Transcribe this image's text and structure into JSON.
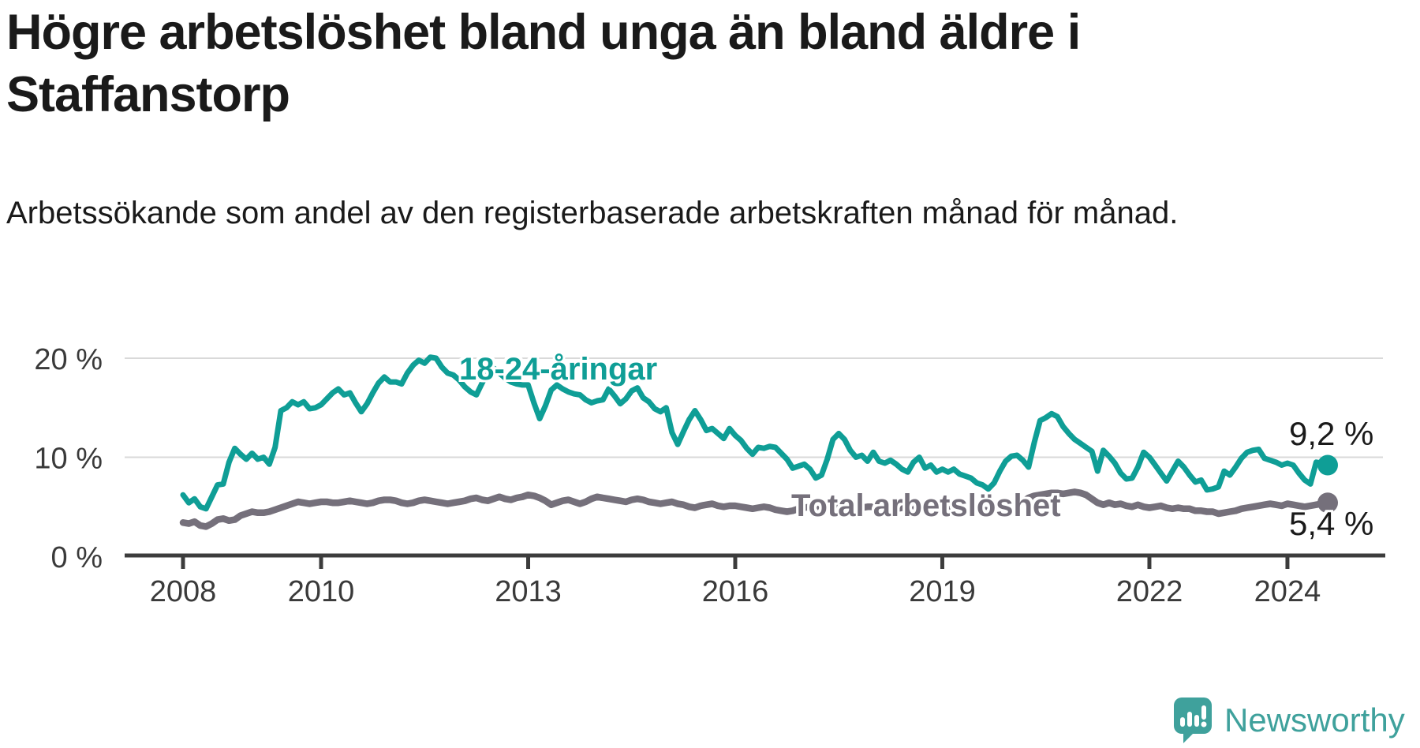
{
  "header": {
    "title": "Högre arbetslöshet bland unga än bland äldre i Staffanstorp",
    "subtitle": "Arbetssökande som andel av den registerbaserade arbetskraften månad för månad."
  },
  "colors": {
    "accent_teal": "#0f9e96",
    "line_gray": "#75707b",
    "text_dark": "#1a1a1a",
    "tick_text": "#3a3a3a",
    "gridline": "#d9d9d9",
    "axis": "#3c3c3c",
    "brand_teal": "#3fa19c"
  },
  "footer": {
    "brand": "Newsworthy"
  },
  "chart_data": {
    "type": "line",
    "title": "Högre arbetslöshet bland unga än bland äldre i Staffanstorp",
    "subtitle": "Arbetssökande som andel av den registerbaserade arbetskraften månad för månad.",
    "unit": "%",
    "x_interval": "monthly",
    "x_start": "2008-01",
    "x_end": "2024-08",
    "ylim": [
      0,
      21.5
    ],
    "grid": "horizontal",
    "legend_position": "inline-labels",
    "y_ticks": [
      {
        "value": 0,
        "label": "0 %"
      },
      {
        "value": 10,
        "label": "10 %"
      },
      {
        "value": 20,
        "label": "20 %"
      }
    ],
    "x_ticks": [
      {
        "year": 2008,
        "label": "2008"
      },
      {
        "year": 2010,
        "label": "2010"
      },
      {
        "year": 2013,
        "label": "2013"
      },
      {
        "year": 2016,
        "label": "2016"
      },
      {
        "year": 2019,
        "label": "2019"
      },
      {
        "year": 2022,
        "label": "2022"
      },
      {
        "year": 2024,
        "label": "2024"
      }
    ],
    "series": [
      {
        "name": "18-24-åringar",
        "color": "#0f9e96",
        "end_label": "9,2 %",
        "end_value": 9.2,
        "values": [
          6.2,
          5.4,
          5.8,
          5.0,
          4.8,
          6.0,
          7.2,
          7.3,
          9.5,
          10.9,
          10.3,
          9.8,
          10.4,
          9.8,
          10.0,
          9.3,
          11.0,
          14.7,
          15.0,
          15.6,
          15.3,
          15.6,
          14.9,
          15.0,
          15.3,
          15.9,
          16.5,
          16.9,
          16.3,
          16.5,
          15.5,
          14.6,
          15.4,
          16.5,
          17.5,
          18.1,
          17.6,
          17.6,
          17.4,
          18.5,
          19.3,
          19.8,
          19.5,
          20.1,
          20.0,
          19.1,
          18.5,
          18.3,
          17.8,
          17.1,
          16.6,
          16.3,
          17.5,
          18.6,
          19.0,
          18.5,
          18.0,
          17.6,
          17.4,
          17.3,
          17.3,
          15.5,
          13.9,
          15.2,
          16.8,
          17.3,
          16.9,
          16.6,
          16.4,
          16.3,
          15.8,
          15.5,
          15.7,
          15.8,
          16.9,
          16.2,
          15.4,
          15.9,
          16.7,
          17.0,
          16.0,
          15.6,
          14.9,
          14.6,
          15.0,
          12.5,
          11.3,
          12.6,
          13.8,
          14.7,
          13.8,
          12.7,
          12.9,
          12.4,
          11.9,
          12.9,
          12.2,
          11.7,
          10.9,
          10.3,
          11.0,
          10.9,
          11.1,
          11.0,
          10.4,
          9.8,
          8.9,
          9.1,
          9.3,
          8.8,
          7.9,
          8.2,
          9.8,
          11.8,
          12.4,
          11.8,
          10.7,
          10.0,
          10.2,
          9.6,
          10.5,
          9.6,
          9.4,
          9.7,
          9.3,
          8.8,
          8.5,
          9.5,
          10.0,
          8.9,
          9.2,
          8.5,
          8.8,
          8.5,
          8.8,
          8.3,
          8.1,
          7.9,
          7.4,
          7.2,
          6.8,
          7.4,
          8.6,
          9.6,
          10.1,
          10.2,
          9.7,
          9.0,
          11.5,
          13.7,
          14.0,
          14.4,
          14.1,
          13.1,
          12.4,
          11.8,
          11.4,
          11.0,
          10.6,
          8.6,
          10.7,
          10.1,
          9.4,
          8.4,
          7.8,
          7.9,
          9.0,
          10.5,
          10.0,
          9.2,
          8.4,
          7.6,
          8.6,
          9.6,
          9.0,
          8.2,
          7.5,
          7.7,
          6.7,
          6.8,
          7.0,
          8.6,
          8.2,
          9.0,
          9.9,
          10.5,
          10.7,
          10.8,
          9.9,
          9.7,
          9.5,
          9.2,
          9.4,
          9.2,
          8.4,
          7.7,
          7.3,
          9.5,
          9.4,
          9.2
        ]
      },
      {
        "name": "Total arbetslöshet",
        "color": "#75707b",
        "end_label": "5,4 %",
        "end_value": 5.4,
        "values": [
          3.4,
          3.3,
          3.5,
          3.1,
          3.0,
          3.3,
          3.7,
          3.8,
          3.6,
          3.7,
          4.1,
          4.3,
          4.5,
          4.4,
          4.4,
          4.5,
          4.7,
          4.9,
          5.1,
          5.3,
          5.5,
          5.4,
          5.3,
          5.4,
          5.5,
          5.5,
          5.4,
          5.4,
          5.5,
          5.6,
          5.5,
          5.4,
          5.3,
          5.4,
          5.6,
          5.7,
          5.7,
          5.6,
          5.4,
          5.3,
          5.4,
          5.6,
          5.7,
          5.6,
          5.5,
          5.4,
          5.3,
          5.4,
          5.5,
          5.6,
          5.8,
          5.9,
          5.7,
          5.6,
          5.8,
          6.0,
          5.8,
          5.7,
          5.9,
          6.0,
          6.2,
          6.1,
          5.9,
          5.6,
          5.2,
          5.4,
          5.6,
          5.7,
          5.5,
          5.3,
          5.5,
          5.8,
          6.0,
          5.9,
          5.8,
          5.7,
          5.6,
          5.5,
          5.7,
          5.8,
          5.7,
          5.5,
          5.4,
          5.3,
          5.4,
          5.5,
          5.3,
          5.2,
          5.0,
          4.9,
          5.1,
          5.2,
          5.3,
          5.1,
          5.0,
          5.1,
          5.1,
          5.0,
          4.9,
          4.8,
          4.9,
          5.0,
          4.9,
          4.7,
          4.6,
          4.5,
          4.6,
          4.8,
          4.9,
          5.0,
          4.8,
          4.7,
          4.8,
          5.0,
          5.1,
          5.0,
          4.9,
          4.8,
          4.9,
          5.0,
          5.0,
          4.9,
          4.8,
          4.7,
          4.8,
          4.9,
          5.0,
          4.9,
          4.8,
          4.7,
          4.8,
          4.9,
          4.8,
          4.7,
          4.8,
          4.7,
          4.6,
          4.7,
          4.8,
          4.7,
          4.6,
          4.7,
          4.9,
          5.0,
          5.1,
          5.2,
          5.5,
          5.9,
          6.1,
          6.2,
          6.3,
          6.4,
          6.4,
          6.3,
          6.4,
          6.5,
          6.4,
          6.2,
          5.8,
          5.4,
          5.2,
          5.4,
          5.2,
          5.3,
          5.1,
          5.0,
          5.2,
          5.0,
          4.9,
          5.0,
          5.1,
          4.9,
          4.8,
          4.9,
          4.8,
          4.8,
          4.6,
          4.6,
          4.5,
          4.5,
          4.3,
          4.4,
          4.5,
          4.6,
          4.8,
          4.9,
          5.0,
          5.1,
          5.2,
          5.3,
          5.2,
          5.1,
          5.3,
          5.2,
          5.1,
          5.0,
          5.1,
          5.2,
          5.3,
          5.4
        ]
      }
    ]
  }
}
